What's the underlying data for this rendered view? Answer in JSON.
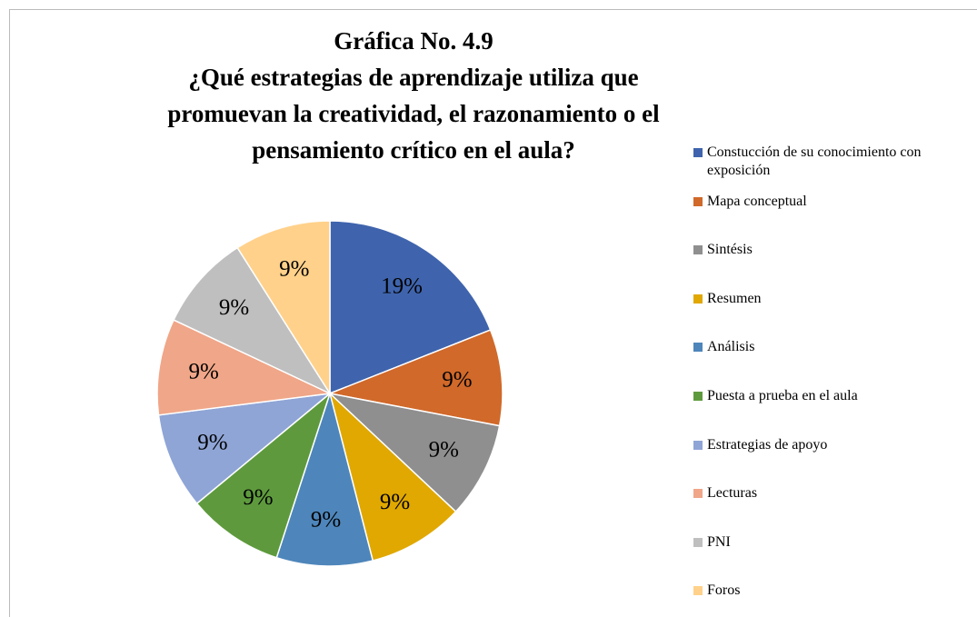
{
  "chart_data": {
    "type": "pie",
    "title": "Gráfica No. 4.9",
    "subtitle": "¿Qué estrategias de aprendizaje utiliza que promuevan la creatividad, el razonamiento o el pensamiento crítico en el aula?",
    "categories": [
      "Constucción de su conocimiento con exposición",
      "Mapa conceptual",
      "Sintésis",
      "Resumen",
      "Análisis",
      "Puesta a prueba en el aula",
      "Estrategias de apoyo",
      "Lecturas",
      "PNI",
      "Foros"
    ],
    "values": [
      19,
      9,
      9,
      9,
      9,
      9,
      9,
      9,
      9,
      9
    ],
    "value_labels": [
      "19%",
      "9%",
      "9%",
      "9%",
      "9%",
      "9%",
      "9%",
      "9%",
      "9%",
      "9%"
    ],
    "colors": [
      "#3f64ad",
      "#d0692a",
      "#8f8f8f",
      "#e0a800",
      "#4e86bb",
      "#5e9a3d",
      "#8fa5d6",
      "#f0a688",
      "#bfbfbf",
      "#ffd18a"
    ],
    "legend": "right"
  }
}
